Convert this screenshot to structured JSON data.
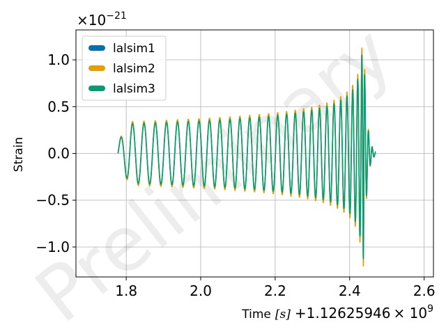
{
  "watermark": "Preliminary",
  "chart_data": {
    "type": "line",
    "title": "",
    "xlabel": "Time",
    "xlabel_unit": "[s]",
    "x_offset_label": "+1.12625946",
    "x_offset_factor": "× 10",
    "x_offset_exp": "9",
    "ylabel": "Strain",
    "y_scale_base": "×10",
    "y_scale_exp": "−21",
    "xlim": [
      1.665,
      2.625
    ],
    "ylim": [
      -1.32,
      1.32
    ],
    "xticks": [
      1.8,
      2.0,
      2.2,
      2.4,
      2.6
    ],
    "xtick_labels": [
      "1.8",
      "2.0",
      "2.2",
      "2.4",
      "2.6"
    ],
    "yticks": [
      -1.0,
      -0.5,
      0.0,
      0.5,
      1.0
    ],
    "ytick_labels": [
      "−1.0",
      "−0.5",
      "0.0",
      "0.5",
      "1.0"
    ],
    "grid": true,
    "legend_position": "top-left",
    "waveform": {
      "t_start": 1.778,
      "t_coalescence": 2.438,
      "t_end": 2.47,
      "num_cycles": 28,
      "inspiral_amplitude": 0.32,
      "peak_amplitude": 1.15
    },
    "series": [
      {
        "name": "lalsim1",
        "color": "#0072b2",
        "amplitude_scale": 1.0,
        "phase_shift": 0.0
      },
      {
        "name": "lalsim2",
        "color": "#e69f00",
        "amplitude_scale": 1.05,
        "phase_shift": 0.0
      },
      {
        "name": "lalsim3",
        "color": "#009e73",
        "amplitude_scale": 0.98,
        "phase_shift": 0.0
      }
    ]
  }
}
